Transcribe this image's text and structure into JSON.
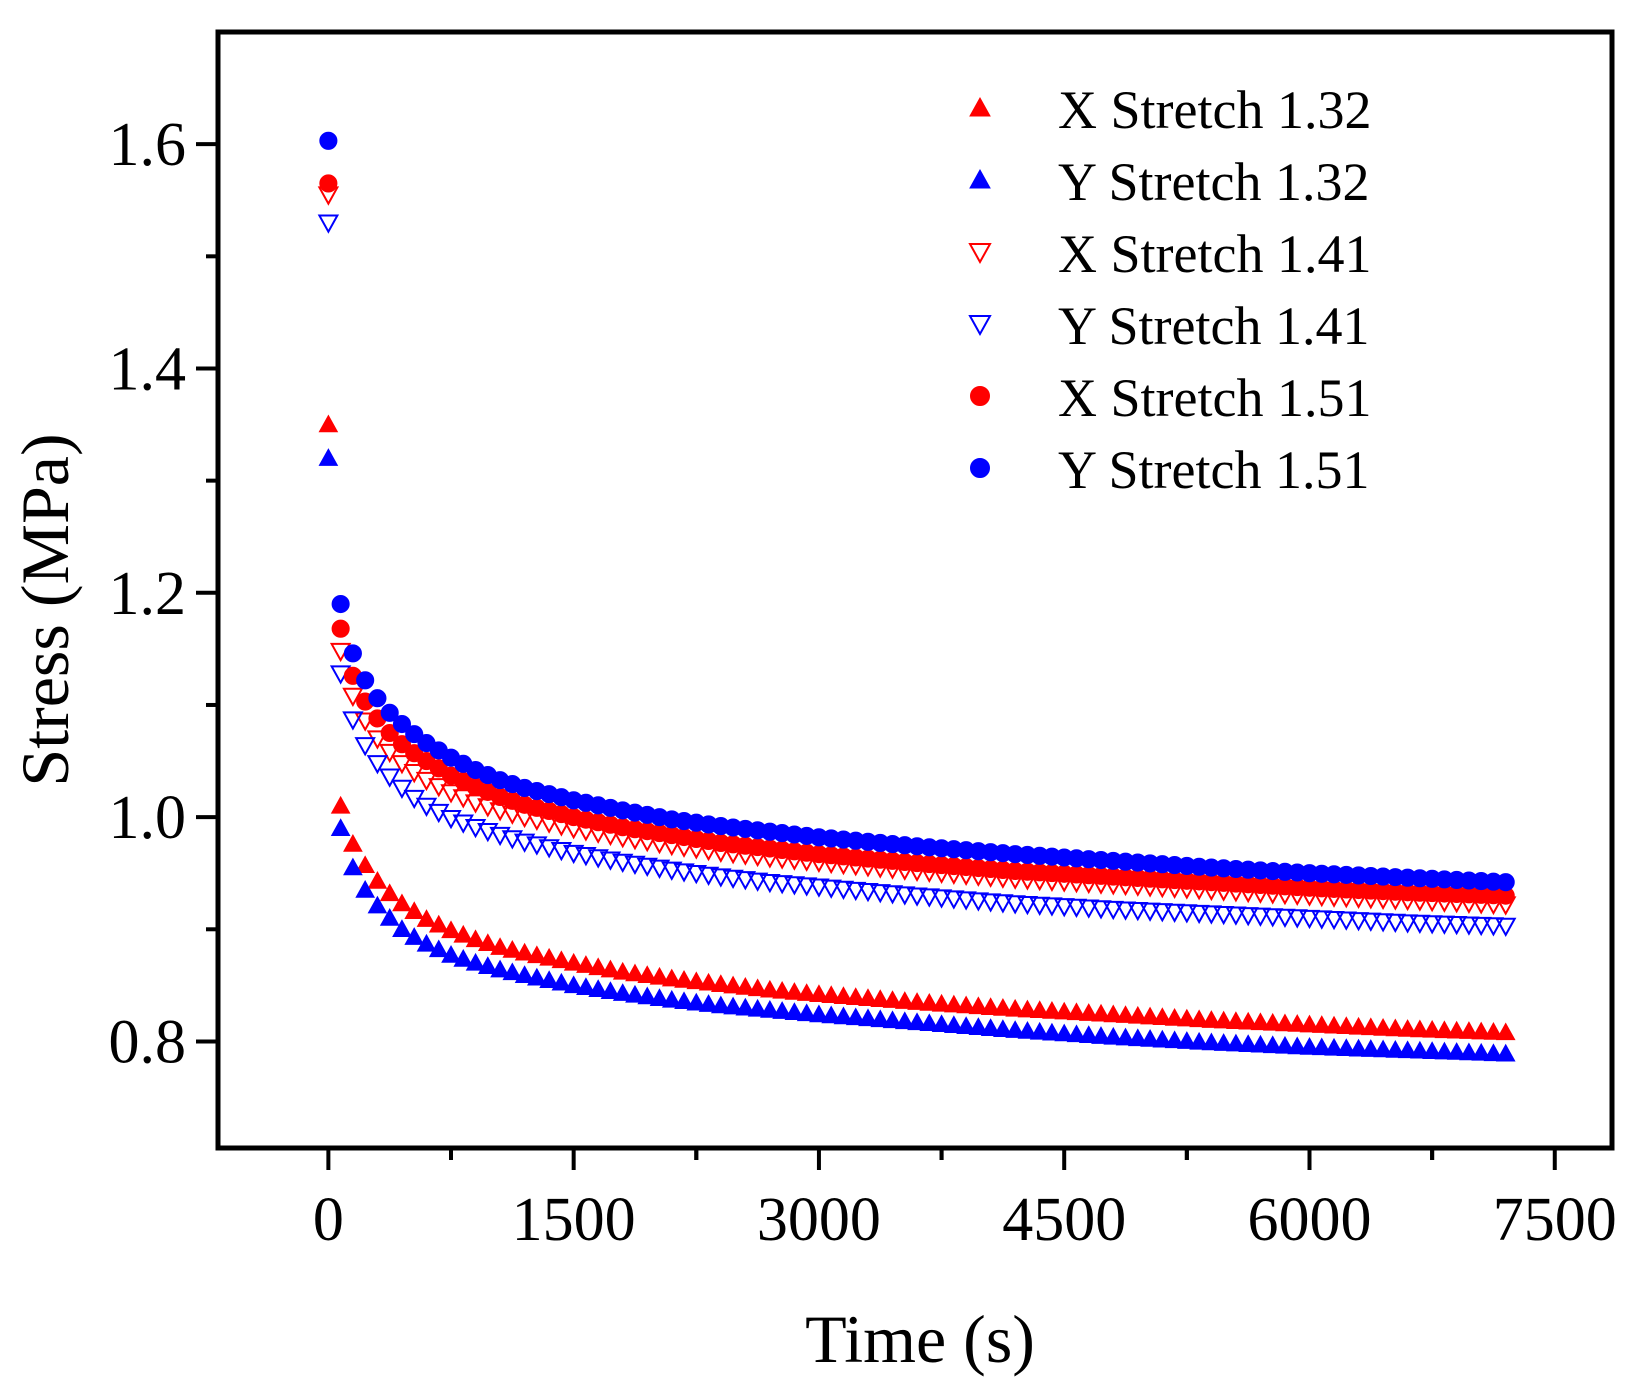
{
  "chart_data": {
    "type": "scatter",
    "title": "",
    "xlabel": "Time (s)",
    "ylabel": "Stress (MPa)",
    "xlim": [
      -675,
      7850
    ],
    "ylim": [
      0.705,
      1.7
    ],
    "xticks": [
      0,
      1500,
      3000,
      4500,
      6000,
      7500
    ],
    "xtick_labels": [
      "0",
      "1500",
      "3000",
      "4500",
      "6000",
      "7500"
    ],
    "yticks": [
      0.8,
      1.0,
      1.2,
      1.4,
      1.6
    ],
    "ytick_labels": [
      "0.8",
      "1.0",
      "1.2",
      "1.4",
      "1.6"
    ],
    "grid": false,
    "legend_position": "top-right",
    "colors": {
      "red": "#ff0000",
      "blue": "#0000ff",
      "axis": "#000000"
    },
    "series": [
      {
        "name": "X Stretch 1.32",
        "marker": "triangle-up",
        "fill": "filled",
        "color": "#ff0000",
        "initial": {
          "x": 0,
          "y": 1.35
        },
        "x": [
          75,
          150,
          225,
          300,
          375,
          450,
          525,
          600,
          750,
          900,
          1050,
          1200,
          1500,
          1800,
          2100,
          2400,
          2700,
          3000,
          3600,
          4200,
          4800,
          5400,
          6000,
          6600,
          7200
        ],
        "values": [
          1.01,
          0.976,
          0.957,
          0.943,
          0.932,
          0.923,
          0.916,
          0.909,
          0.899,
          0.891,
          0.884,
          0.879,
          0.87,
          0.862,
          0.856,
          0.851,
          0.846,
          0.842,
          0.835,
          0.829,
          0.824,
          0.819,
          0.815,
          0.811,
          0.808
        ]
      },
      {
        "name": "Y Stretch 1.32",
        "marker": "triangle-up",
        "fill": "filled",
        "color": "#0000ff",
        "initial": {
          "x": 0,
          "y": 1.32
        },
        "x": [
          75,
          150,
          225,
          300,
          375,
          450,
          525,
          600,
          750,
          900,
          1050,
          1200,
          1500,
          1800,
          2100,
          2400,
          2700,
          3000,
          3600,
          4200,
          4800,
          5400,
          6000,
          6600,
          7200
        ],
        "values": [
          0.99,
          0.955,
          0.935,
          0.921,
          0.91,
          0.9,
          0.893,
          0.887,
          0.877,
          0.87,
          0.864,
          0.859,
          0.85,
          0.843,
          0.837,
          0.832,
          0.828,
          0.824,
          0.817,
          0.81,
          0.804,
          0.799,
          0.795,
          0.792,
          0.789
        ]
      },
      {
        "name": "X Stretch 1.41",
        "marker": "triangle-down",
        "fill": "hollow",
        "color": "#ff0000",
        "initial": {
          "x": 0,
          "y": 1.555
        },
        "x": [
          75,
          150,
          225,
          300,
          375,
          450,
          525,
          600,
          750,
          900,
          1050,
          1200,
          1500,
          1800,
          2100,
          2400,
          2700,
          3000,
          3600,
          4200,
          4800,
          5400,
          6000,
          6600,
          7200
        ],
        "values": [
          1.148,
          1.108,
          1.086,
          1.07,
          1.058,
          1.048,
          1.04,
          1.033,
          1.022,
          1.013,
          1.006,
          1.0,
          0.99,
          0.982,
          0.975,
          0.969,
          0.964,
          0.96,
          0.952,
          0.945,
          0.94,
          0.935,
          0.93,
          0.926,
          0.922
        ]
      },
      {
        "name": "Y Stretch 1.41",
        "marker": "triangle-down",
        "fill": "hollow",
        "color": "#0000ff",
        "initial": {
          "x": 0,
          "y": 1.53
        },
        "x": [
          75,
          150,
          225,
          300,
          375,
          450,
          525,
          600,
          750,
          900,
          1050,
          1200,
          1500,
          1800,
          2100,
          2400,
          2700,
          3000,
          3600,
          4200,
          4800,
          5400,
          6000,
          6600,
          7200
        ],
        "values": [
          1.128,
          1.087,
          1.064,
          1.048,
          1.036,
          1.026,
          1.017,
          1.01,
          0.999,
          0.991,
          0.984,
          0.978,
          0.968,
          0.96,
          0.953,
          0.947,
          0.942,
          0.938,
          0.93,
          0.923,
          0.918,
          0.914,
          0.91,
          0.906,
          0.903
        ]
      },
      {
        "name": "X Stretch 1.51",
        "marker": "circle",
        "fill": "filled",
        "color": "#ff0000",
        "initial": {
          "x": 0,
          "y": 1.565
        },
        "x": [
          75,
          150,
          225,
          300,
          375,
          450,
          525,
          600,
          750,
          900,
          1050,
          1200,
          1500,
          1800,
          2100,
          2400,
          2700,
          3000,
          3600,
          4200,
          4800,
          5400,
          6000,
          6600,
          7200
        ],
        "values": [
          1.168,
          1.126,
          1.103,
          1.088,
          1.075,
          1.065,
          1.057,
          1.05,
          1.037,
          1.027,
          1.018,
          1.011,
          1.0,
          0.991,
          0.984,
          0.977,
          0.972,
          0.967,
          0.959,
          0.952,
          0.947,
          0.942,
          0.937,
          0.933,
          0.93
        ]
      },
      {
        "name": "Y Stretch 1.51",
        "marker": "circle",
        "fill": "filled",
        "color": "#0000ff",
        "initial": {
          "x": 0,
          "y": 1.603
        },
        "x": [
          75,
          150,
          225,
          300,
          375,
          450,
          525,
          600,
          750,
          900,
          1050,
          1200,
          1500,
          1800,
          2100,
          2400,
          2700,
          3000,
          3600,
          4200,
          4800,
          5400,
          6000,
          6600,
          7200
        ],
        "values": [
          1.19,
          1.146,
          1.122,
          1.106,
          1.093,
          1.083,
          1.074,
          1.066,
          1.053,
          1.042,
          1.033,
          1.026,
          1.015,
          1.006,
          0.998,
          0.992,
          0.987,
          0.982,
          0.974,
          0.967,
          0.961,
          0.955,
          0.95,
          0.946,
          0.942
        ]
      }
    ]
  }
}
